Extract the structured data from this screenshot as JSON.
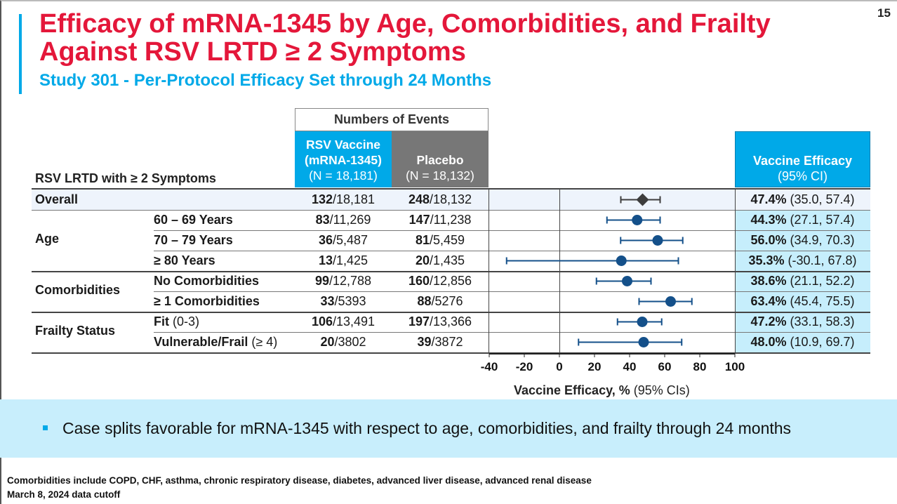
{
  "page_number": "15",
  "title_line1": "Efficacy of mRNA-1345 by Age, Comorbidities, and Frailty",
  "title_line2": "Against RSV LRTD ≥ 2 Symptoms",
  "subtitle": "Study 301 - Per-Protocol Efficacy Set through 24 Months",
  "table": {
    "row_header": "RSV LRTD with ≥ 2 Symptoms",
    "events_header": "Numbers of Events",
    "vaccine_header": {
      "line1": "RSV Vaccine",
      "line2": "(mRNA-1345)",
      "line3": "(N = 18,181)"
    },
    "placebo_header": {
      "line1": "Placebo",
      "line2": "(N = 18,132)"
    },
    "ve_header": {
      "line1": "Vaccine Efficacy",
      "line2": "(95% CI)"
    },
    "groups": {
      "age": "Age",
      "comorbidities": "Comorbidities",
      "frailty": "Frailty Status"
    },
    "rows": [
      {
        "label": "Overall",
        "label_suffix": "",
        "vax_events": "132",
        "vax_n": "/18,181",
        "pbo_events": "248",
        "pbo_n": "/18,132",
        "ve": "47.4%",
        "ci": " (35.0, 57.4)"
      },
      {
        "label": "60 – 69 Years",
        "label_suffix": "",
        "vax_events": "83",
        "vax_n": "/11,269",
        "pbo_events": "147",
        "pbo_n": "/11,238",
        "ve": "44.3%",
        "ci": " (27.1, 57.4)"
      },
      {
        "label": "70 – 79 Years",
        "label_suffix": "",
        "vax_events": "36",
        "vax_n": "/5,487",
        "pbo_events": "81",
        "pbo_n": "/5,459",
        "ve": "56.0%",
        "ci": " (34.9, 70.3)"
      },
      {
        "label": "≥ 80 Years",
        "label_suffix": "",
        "vax_events": "13",
        "vax_n": "/1,425",
        "pbo_events": "20",
        "pbo_n": "/1,435",
        "ve": "35.3%",
        "ci": " (-30.1, 67.8)"
      },
      {
        "label": "No Comorbidities",
        "label_suffix": "",
        "vax_events": "99",
        "vax_n": "/12,788",
        "pbo_events": "160",
        "pbo_n": "/12,856",
        "ve": "38.6%",
        "ci": " (21.1, 52.2)"
      },
      {
        "label": "≥ 1 Comorbidities",
        "label_suffix": "",
        "vax_events": "33",
        "vax_n": "/5393",
        "pbo_events": "88",
        "pbo_n": "/5276",
        "ve": "63.4%",
        "ci": " (45.4, 75.5)"
      },
      {
        "label": "Fit",
        "label_suffix": " (0-3)",
        "vax_events": "106",
        "vax_n": "/13,491",
        "pbo_events": "197",
        "pbo_n": "/13,366",
        "ve": "47.2%",
        "ci": " (33.1, 58.3)"
      },
      {
        "label": "Vulnerable/Frail",
        "label_suffix": " (≥ 4)",
        "vax_events": "20",
        "vax_n": "/3802",
        "pbo_events": "39",
        "pbo_n": "/3872",
        "ve": "48.0%",
        "ci": " (10.9, 69.7)"
      }
    ]
  },
  "chart_data": {
    "type": "scatter",
    "subtype": "forest_plot",
    "xlabel_bold": "Vaccine Efficacy, %",
    "xlabel_normal": " (95% CIs)",
    "xlim": [
      -40,
      100
    ],
    "xticks": [
      -40,
      -20,
      0,
      20,
      40,
      60,
      80,
      100
    ],
    "reference_line": 0,
    "categories": [
      "Overall",
      "60 – 69 Years",
      "70 – 79 Years",
      "≥ 80 Years",
      "No Comorbidities",
      "≥ 1 Comorbidities",
      "Fit (0-3)",
      "Vulnerable/Frail (≥ 4)"
    ],
    "estimates": [
      47.4,
      44.3,
      56.0,
      35.3,
      38.6,
      63.4,
      47.2,
      48.0
    ],
    "ci_lower": [
      35.0,
      27.1,
      34.9,
      -30.1,
      21.1,
      45.4,
      33.1,
      10.9
    ],
    "ci_upper": [
      57.4,
      57.4,
      70.3,
      67.8,
      52.2,
      75.5,
      58.3,
      69.7
    ],
    "markers": [
      "diamond",
      "circle",
      "circle",
      "circle",
      "circle",
      "circle",
      "circle",
      "circle"
    ],
    "colors": {
      "overall": "#3d3d3d",
      "subgroup": "#14508a"
    }
  },
  "callout": "Case splits favorable for mRNA-1345 with respect to age, comorbidities, and frailty through 24 months",
  "footnote1": "Comorbidities include COPD, CHF, asthma, chronic respiratory disease, diabetes, advanced liver disease, advanced renal disease",
  "footnote2": "March 8, 2024 data cutoff",
  "colors": {
    "title": "#e4173a",
    "accent": "#00a9e8",
    "placebo_header": "#777777",
    "ve_cell": "#c6eefc",
    "callout_bg": "#c8eefc"
  }
}
